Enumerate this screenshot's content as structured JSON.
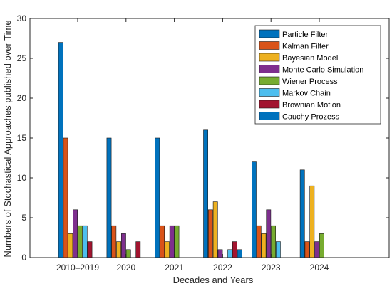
{
  "chart_data": {
    "type": "bar",
    "title": "",
    "xlabel": "Decades and Years",
    "ylabel": "Numbers of Stochastical Approaches published over Time",
    "ylim": [
      0,
      30
    ],
    "yticks": [
      0,
      5,
      10,
      15,
      20,
      25,
      30
    ],
    "categories": [
      "2010–2019",
      "2020",
      "2021",
      "2022",
      "2023",
      "2024"
    ],
    "legend_position": "top-right",
    "grid": false,
    "series": [
      {
        "name": "Particle Filter",
        "color": "#0072BD",
        "values": [
          27,
          15,
          15,
          16,
          12,
          11
        ]
      },
      {
        "name": "Kalman Filter",
        "color": "#D95319",
        "values": [
          15,
          4,
          4,
          6,
          4,
          2
        ]
      },
      {
        "name": "Bayesian Model",
        "color": "#EDB120",
        "values": [
          3,
          2,
          2,
          7,
          3,
          9
        ]
      },
      {
        "name": "Monte Carlo Simulation",
        "color": "#7E2F8E",
        "values": [
          6,
          3,
          4,
          1,
          6,
          2
        ]
      },
      {
        "name": "Wiener Process",
        "color": "#77AC30",
        "values": [
          4,
          1,
          4,
          0,
          4,
          3
        ]
      },
      {
        "name": "Markov Chain",
        "color": "#4DBEEE",
        "values": [
          4,
          0,
          0,
          1,
          2,
          0
        ]
      },
      {
        "name": "Brownian Motion",
        "color": "#A2142F",
        "values": [
          2,
          2,
          0,
          2,
          0,
          0
        ]
      },
      {
        "name": "Cauchy Prozess",
        "color": "#0072BD",
        "values": [
          0,
          0,
          0,
          1,
          0,
          0
        ]
      }
    ]
  }
}
